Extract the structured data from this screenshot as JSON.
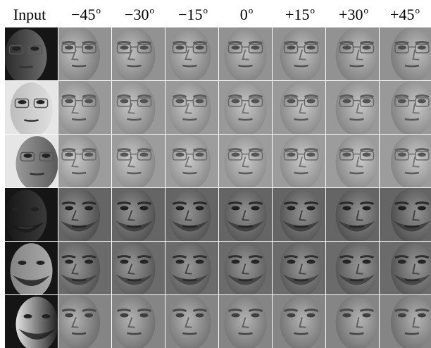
{
  "header": {
    "input_label": "Input",
    "angles": [
      "−45",
      "−30",
      "−15",
      "0",
      "+15",
      "+30",
      "+45"
    ],
    "degree_mark": "o"
  },
  "rows": [
    {
      "input": {
        "tone": "#2a2a2a",
        "lit": "#6b6b6b",
        "glasses": true,
        "beard": false,
        "pose": -1,
        "hairDark": true
      },
      "output": {
        "tone": "#9c9c9c",
        "glasses": true,
        "beard": false
      }
    },
    {
      "input": {
        "tone": "#bdbdbd",
        "lit": "#dedede",
        "glasses": true,
        "beard": false,
        "pose": 0,
        "hairDark": false
      },
      "output": {
        "tone": "#a3a3a3",
        "glasses": true,
        "beard": false
      }
    },
    {
      "input": {
        "tone": "#5a5a5a",
        "lit": "#9a9a9a",
        "glasses": true,
        "beard": false,
        "pose": 1,
        "hairDark": false
      },
      "output": {
        "tone": "#a6a6a6",
        "glasses": true,
        "beard": false
      }
    },
    {
      "input": {
        "tone": "#151515",
        "lit": "#3a3a3a",
        "glasses": false,
        "beard": true,
        "pose": -1,
        "hairDark": true
      },
      "output": {
        "tone": "#6f6f6f",
        "glasses": false,
        "beard": true
      }
    },
    {
      "input": {
        "tone": "#858585",
        "lit": "#a9a9a9",
        "glasses": false,
        "beard": true,
        "pose": 0,
        "hairDark": true
      },
      "output": {
        "tone": "#757575",
        "glasses": false,
        "beard": true
      }
    },
    {
      "input": {
        "tone": "#202020",
        "lit": "#e2e2e2",
        "glasses": false,
        "beard": true,
        "pose": 1,
        "hairDark": true
      },
      "output": {
        "tone": "#8f8f8f",
        "glasses": false,
        "beard": false
      }
    }
  ]
}
